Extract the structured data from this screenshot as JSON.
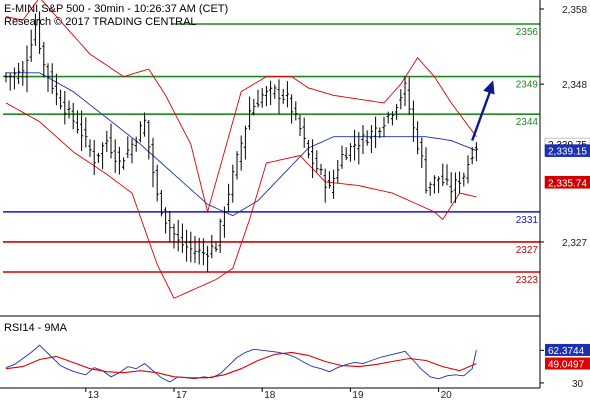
{
  "header": {
    "title": "E-MINI S&P 500 - 30min - 10:26:37 AM (CET)",
    "copyright": "Research © 2017 TRADING CENTRAL"
  },
  "colors": {
    "background": "#ffffff",
    "bars": "#000000",
    "bollinger": "#e00000",
    "moving_average": "#1b2fb0",
    "resistance": "#1f8a1f",
    "pivot": "#1414c8",
    "support": "#d00000",
    "arrow": "#0a1a8c",
    "rsi": "#1b2fb0",
    "rsi_ma": "#e00000",
    "axis": "#000000"
  },
  "chart_data": [
    {
      "type": "ohlc-bar",
      "panel": "price",
      "y_ticks": [
        "2,358",
        "2,348",
        "2,327"
      ],
      "ylim": [
        2316.5,
        2359.5
      ],
      "x_tick_labels": [
        "13",
        "17",
        "18",
        "19",
        "20"
      ],
      "x_tick_bar_index": [
        19,
        40,
        61,
        82,
        103
      ],
      "bar_count": 113,
      "price_path": [
        [
          0,
          2349.0
        ],
        [
          4,
          2349.5
        ],
        [
          7,
          2356.0
        ],
        [
          9,
          2350.5
        ],
        [
          12,
          2346.5
        ],
        [
          15,
          2344.0
        ],
        [
          18,
          2341.5
        ],
        [
          21,
          2338.0
        ],
        [
          24,
          2340.5
        ],
        [
          27,
          2337.5
        ],
        [
          30,
          2340.0
        ],
        [
          33,
          2343.0
        ],
        [
          36,
          2333.0
        ],
        [
          38,
          2330.0
        ],
        [
          41,
          2327.0
        ],
        [
          44,
          2326.0
        ],
        [
          47,
          2325.5
        ],
        [
          50,
          2326.5
        ],
        [
          52,
          2331.5
        ],
        [
          55,
          2338.0
        ],
        [
          58,
          2344.5
        ],
        [
          61,
          2346.5
        ],
        [
          64,
          2347.0
        ],
        [
          67,
          2346.0
        ],
        [
          70,
          2342.0
        ],
        [
          72,
          2338.5
        ],
        [
          75,
          2336.0
        ],
        [
          77,
          2334.0
        ],
        [
          80,
          2338.5
        ],
        [
          83,
          2340.0
        ],
        [
          86,
          2341.0
        ],
        [
          89,
          2342.5
        ],
        [
          92,
          2344.5
        ],
        [
          95,
          2347.5
        ],
        [
          97,
          2342.0
        ],
        [
          99,
          2338.0
        ],
        [
          100,
          2334.5
        ],
        [
          103,
          2335.5
        ],
        [
          106,
          2334.0
        ],
        [
          109,
          2336.0
        ],
        [
          111,
          2339.0
        ],
        [
          112,
          2339.75
        ]
      ],
      "overlays": [
        {
          "name": "",
          "kind": "moving_average",
          "path": [
            [
              0,
              2349.5
            ],
            [
              8,
              2349.5
            ],
            [
              16,
              2347.0
            ],
            [
              24,
              2343.5
            ],
            [
              32,
              2340.0
            ],
            [
              40,
              2336.0
            ],
            [
              48,
              2332.0
            ],
            [
              54,
              2330.5
            ],
            [
              60,
              2332.5
            ],
            [
              66,
              2336.0
            ],
            [
              72,
              2339.5
            ],
            [
              78,
              2341.0
            ],
            [
              86,
              2341.0
            ],
            [
              94,
              2341.0
            ],
            [
              100,
              2341.0
            ],
            [
              106,
              2340.5
            ],
            [
              112,
              2339.15
            ]
          ]
        },
        {
          "name": "",
          "kind": "bollinger_upper",
          "path": [
            [
              0,
              2357.0
            ],
            [
              4,
              2356.5
            ],
            [
              8,
              2359.5
            ],
            [
              12,
              2357.0
            ],
            [
              20,
              2352.0
            ],
            [
              28,
              2349.0
            ],
            [
              34,
              2350.0
            ],
            [
              38,
              2346.5
            ],
            [
              44,
              2340.0
            ],
            [
              48,
              2331.0
            ],
            [
              52,
              2339.0
            ],
            [
              56,
              2347.0
            ],
            [
              62,
              2349.0
            ],
            [
              68,
              2349.0
            ],
            [
              72,
              2347.5
            ],
            [
              78,
              2346.5
            ],
            [
              84,
              2346.0
            ],
            [
              90,
              2345.5
            ],
            [
              94,
              2348.0
            ],
            [
              98,
              2351.5
            ],
            [
              102,
              2349.0
            ],
            [
              106,
              2345.5
            ],
            [
              110,
              2342.5
            ],
            [
              112,
              2341.0
            ]
          ]
        },
        {
          "name": "",
          "kind": "bollinger_lower",
          "path": [
            [
              0,
              2345.5
            ],
            [
              8,
              2343.0
            ],
            [
              16,
              2339.0
            ],
            [
              24,
              2336.0
            ],
            [
              30,
              2333.5
            ],
            [
              36,
              2324.0
            ],
            [
              40,
              2319.5
            ],
            [
              46,
              2321.0
            ],
            [
              50,
              2322.0
            ],
            [
              54,
              2323.5
            ],
            [
              58,
              2330.0
            ],
            [
              62,
              2337.5
            ],
            [
              70,
              2338.5
            ],
            [
              76,
              2335.0
            ],
            [
              84,
              2334.5
            ],
            [
              92,
              2333.5
            ],
            [
              98,
              2332.0
            ],
            [
              102,
              2331.0
            ],
            [
              104,
              2330.0
            ],
            [
              108,
              2333.5
            ],
            [
              112,
              2333.0
            ]
          ]
        }
      ],
      "levels": [
        {
          "label": "2356",
          "value": 2356,
          "role": "resistance",
          "x_start_bar": 40
        },
        {
          "label": "2349",
          "value": 2349,
          "role": "resistance",
          "x_start_bar": 0
        },
        {
          "label": "2344",
          "value": 2344,
          "role": "resistance",
          "x_start_bar": 0
        },
        {
          "label": "2331",
          "value": 2331,
          "role": "pivot",
          "x_start_bar": 0
        },
        {
          "label": "2327",
          "value": 2327,
          "role": "support",
          "x_start_bar": 0
        },
        {
          "label": "2323",
          "value": 2323,
          "role": "support",
          "x_start_bar": 0
        }
      ],
      "arrow": {
        "from": [
          111,
          2340.5
        ],
        "to": [
          116,
          2348.5
        ]
      },
      "price_badges": [
        {
          "label": "2,339.75",
          "value": 2339.75,
          "style": "white"
        },
        {
          "label": "2,339.15",
          "value": 2339.15,
          "style": "blue"
        },
        {
          "label": "2,335.74",
          "value": 2335.74,
          "style": "red"
        }
      ]
    },
    {
      "type": "line",
      "panel": "rsi",
      "title": "RSI14 - 9MA",
      "y_ticks": [
        "62",
        "30"
      ],
      "ylim": [
        25,
        80
      ],
      "series": [
        {
          "name": "",
          "kind": "rsi",
          "x": [
            0,
            2,
            4,
            6,
            8,
            9,
            11,
            13,
            15,
            17,
            19,
            21,
            23,
            25,
            27,
            29,
            31,
            33,
            35,
            37,
            39,
            41,
            43,
            45,
            47,
            49,
            51,
            53,
            55,
            57,
            59,
            61,
            63,
            65,
            67,
            69,
            71,
            73,
            75,
            77,
            79,
            81,
            83,
            85,
            87,
            89,
            91,
            93,
            95,
            97,
            99,
            101,
            103,
            105,
            107,
            109,
            111,
            112
          ],
          "values": [
            45,
            48,
            54,
            60,
            67,
            63,
            55,
            47,
            43,
            40,
            38,
            45,
            42,
            36,
            40,
            46,
            44,
            49,
            42,
            35,
            31,
            36,
            35,
            34,
            36,
            35,
            39,
            47,
            55,
            60,
            63,
            62,
            61,
            60,
            58,
            55,
            50,
            46,
            44,
            41,
            45,
            48,
            50,
            49,
            52,
            55,
            57,
            59,
            61,
            52,
            43,
            36,
            34,
            37,
            38,
            37,
            44,
            62.37
          ]
        },
        {
          "name": "",
          "kind": "rsi_ma",
          "x": [
            0,
            4,
            8,
            12,
            16,
            20,
            24,
            28,
            32,
            36,
            40,
            44,
            48,
            52,
            56,
            60,
            64,
            68,
            72,
            76,
            80,
            84,
            88,
            92,
            96,
            100,
            104,
            108,
            112
          ],
          "values": [
            44,
            46,
            53,
            56,
            50,
            44,
            41,
            40,
            42,
            40,
            36,
            35,
            35,
            38,
            44,
            52,
            58,
            60,
            57,
            51,
            47,
            46,
            48,
            51,
            54,
            52,
            46,
            42,
            49.05
          ]
        }
      ],
      "badges": [
        {
          "label": "62.3744",
          "value": 62.37,
          "style": "blue"
        },
        {
          "label": "49.0497",
          "value": 49.05,
          "style": "red"
        }
      ]
    }
  ]
}
